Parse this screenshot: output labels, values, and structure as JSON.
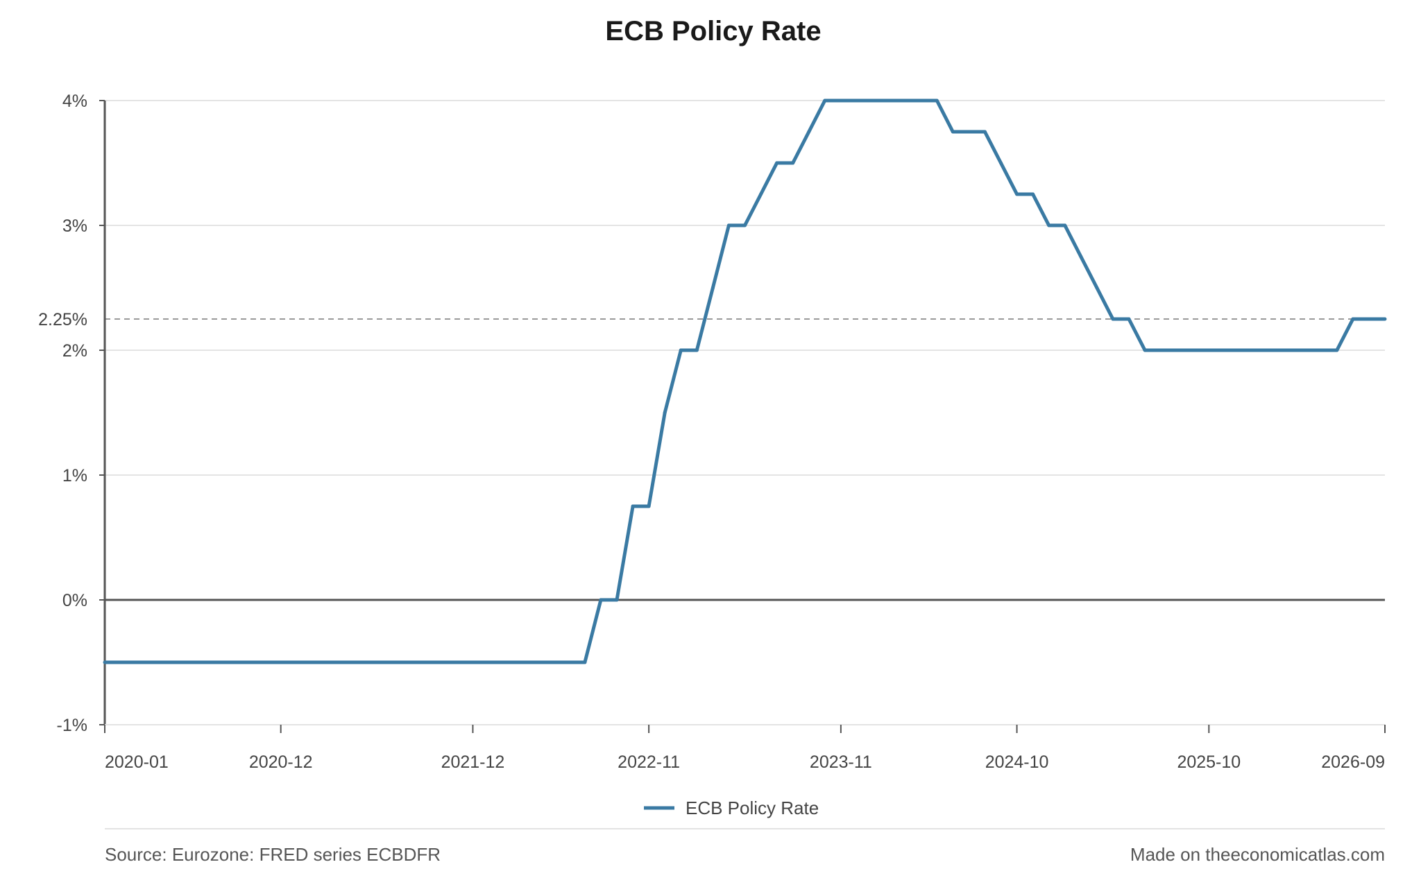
{
  "page": {
    "source_text": "Source: Eurozone: FRED series ECBDFR",
    "credit_text": "Made on theeconomicatlas.com"
  },
  "chart_data": {
    "type": "line",
    "title": "ECB Policy Rate",
    "xlabel": "",
    "ylabel": "",
    "x_axis": {
      "type": "date",
      "range": [
        "2020-01",
        "2026-09"
      ],
      "tick_labels": [
        "2020-01",
        "2020-12",
        "2021-12",
        "2022-11",
        "2023-11",
        "2024-10",
        "2025-10",
        "2026-09"
      ]
    },
    "y_axis": {
      "range": [
        -1,
        4
      ],
      "ticks": [
        -1,
        0,
        1,
        2,
        3,
        4
      ],
      "tick_labels": [
        "-1%",
        "0%",
        "1%",
        "2%",
        "3%",
        "4%"
      ]
    },
    "reference_line": {
      "value": 2.25,
      "label": "2.25%",
      "style": "dashed",
      "color": "#999999"
    },
    "zero_line": {
      "value": 0,
      "color": "#555555"
    },
    "grid": true,
    "legend": {
      "position": "bottom-center"
    },
    "series": [
      {
        "name": "ECB Policy Rate",
        "color": "#3a7aa3",
        "points": [
          {
            "x": "2020-01",
            "y": -0.5
          },
          {
            "x": "2022-07",
            "y": -0.5
          },
          {
            "x": "2022-08",
            "y": 0.0
          },
          {
            "x": "2022-09",
            "y": 0.0
          },
          {
            "x": "2022-10",
            "y": 0.75
          },
          {
            "x": "2022-11",
            "y": 0.75
          },
          {
            "x": "2022-12",
            "y": 1.5
          },
          {
            "x": "2023-01",
            "y": 2.0
          },
          {
            "x": "2023-02",
            "y": 2.0
          },
          {
            "x": "2023-03",
            "y": 2.5
          },
          {
            "x": "2023-04",
            "y": 3.0
          },
          {
            "x": "2023-05",
            "y": 3.0
          },
          {
            "x": "2023-06",
            "y": 3.25
          },
          {
            "x": "2023-07",
            "y": 3.5
          },
          {
            "x": "2023-08",
            "y": 3.5
          },
          {
            "x": "2023-09",
            "y": 3.75
          },
          {
            "x": "2023-10",
            "y": 4.0
          },
          {
            "x": "2024-05",
            "y": 4.0
          },
          {
            "x": "2024-06",
            "y": 3.75
          },
          {
            "x": "2024-08",
            "y": 3.75
          },
          {
            "x": "2024-09",
            "y": 3.5
          },
          {
            "x": "2024-10",
            "y": 3.25
          },
          {
            "x": "2024-11",
            "y": 3.25
          },
          {
            "x": "2024-12",
            "y": 3.0
          },
          {
            "x": "2025-01",
            "y": 3.0
          },
          {
            "x": "2025-02",
            "y": 2.75
          },
          {
            "x": "2025-03",
            "y": 2.5
          },
          {
            "x": "2025-04",
            "y": 2.25
          },
          {
            "x": "2025-05",
            "y": 2.25
          },
          {
            "x": "2025-06",
            "y": 2.0
          },
          {
            "x": "2026-06",
            "y": 2.0
          },
          {
            "x": "2026-07",
            "y": 2.25
          },
          {
            "x": "2026-09",
            "y": 2.25
          }
        ]
      }
    ]
  }
}
